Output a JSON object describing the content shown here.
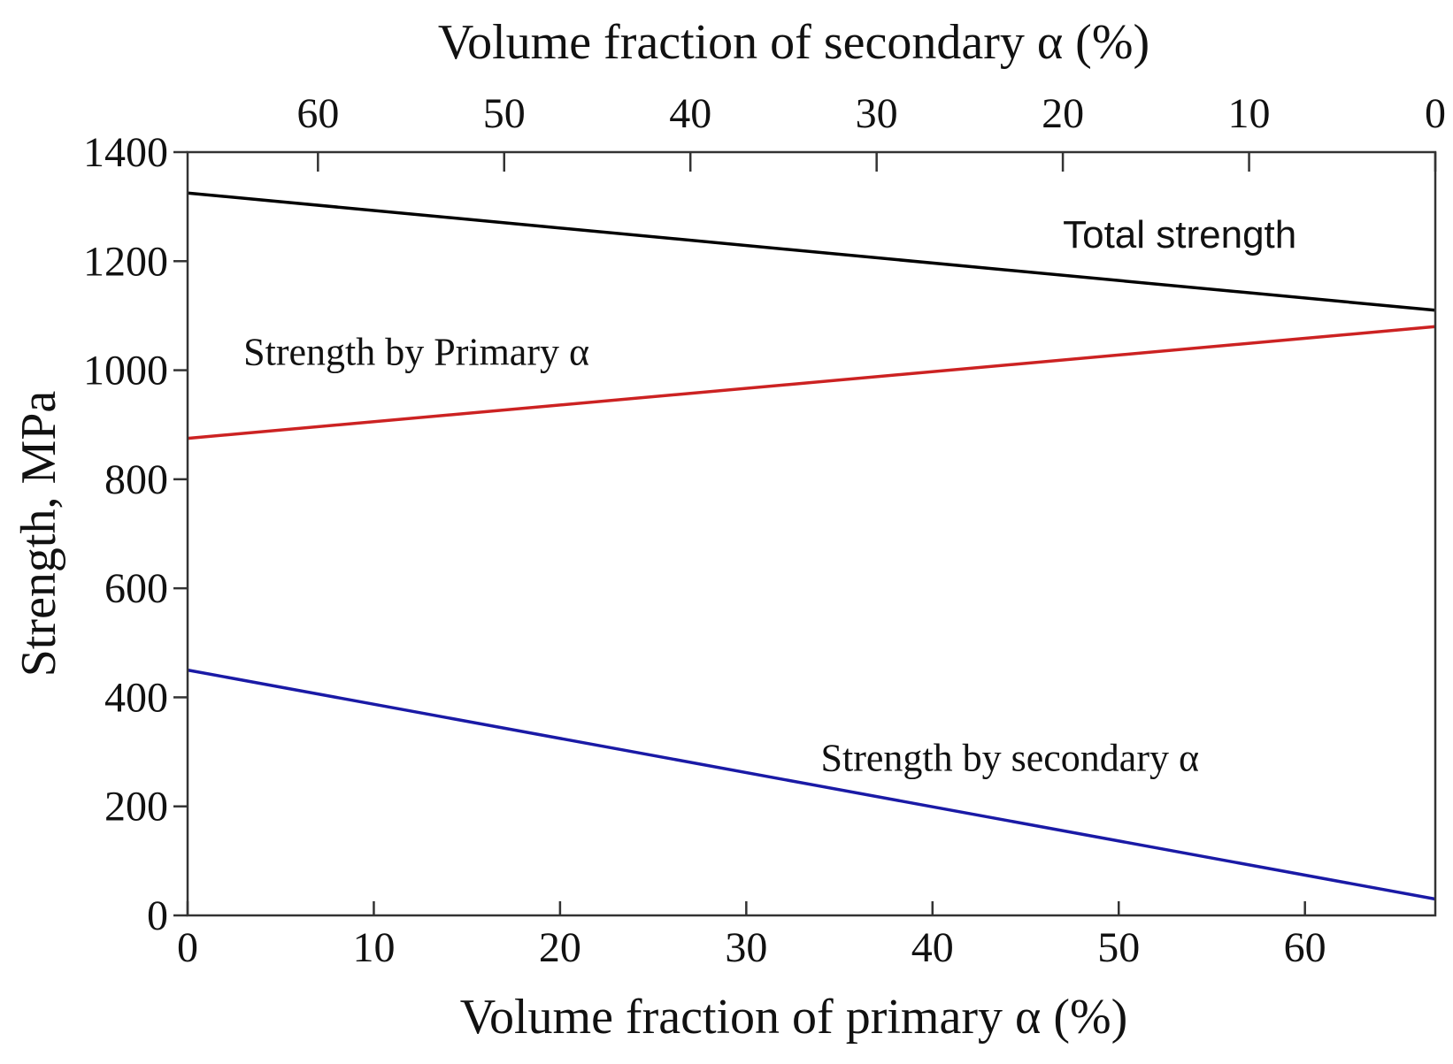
{
  "chart_data": {
    "type": "line",
    "xlabel": "Volume fraction of primary α (%)",
    "x2label": "Volume fraction of secondary α (%)",
    "ylabel": "Strength, MPa",
    "xlim": [
      0,
      67
    ],
    "ylim": [
      0,
      1400
    ],
    "x_ticks": [
      0,
      10,
      20,
      30,
      40,
      50,
      60
    ],
    "x2_ticks": [
      {
        "label": "60",
        "primary_x": 7
      },
      {
        "label": "50",
        "primary_x": 17
      },
      {
        "label": "40",
        "primary_x": 27
      },
      {
        "label": "30",
        "primary_x": 37
      },
      {
        "label": "20",
        "primary_x": 47
      },
      {
        "label": "10",
        "primary_x": 57
      },
      {
        "label": "0",
        "primary_x": 67
      }
    ],
    "y_ticks": [
      0,
      200,
      400,
      600,
      800,
      1000,
      1200,
      1400
    ],
    "series": [
      {
        "name": "Total strength",
        "color": "#000000",
        "x": [
          0,
          67
        ],
        "y": [
          1325,
          1110
        ],
        "label_style": "sans"
      },
      {
        "name": "Strength by Primary α",
        "color": "#cc2222",
        "x": [
          0,
          67
        ],
        "y": [
          875,
          1080
        ],
        "label_style": "serif"
      },
      {
        "name": "Strength by secondary α",
        "color": "#1a1aa6",
        "x": [
          0,
          67
        ],
        "y": [
          450,
          30
        ],
        "label_style": "serif"
      }
    ],
    "annotations": [
      {
        "series": "Total strength",
        "text": "Total strength",
        "at_x": 47,
        "at_y": 1225
      },
      {
        "series": "Strength by Primary α",
        "text": "Strength by Primary α",
        "at_x": 3,
        "at_y": 1010
      },
      {
        "series": "Strength by secondary α",
        "text": "Strength by secondary α",
        "at_x": 34,
        "at_y": 265
      }
    ]
  }
}
